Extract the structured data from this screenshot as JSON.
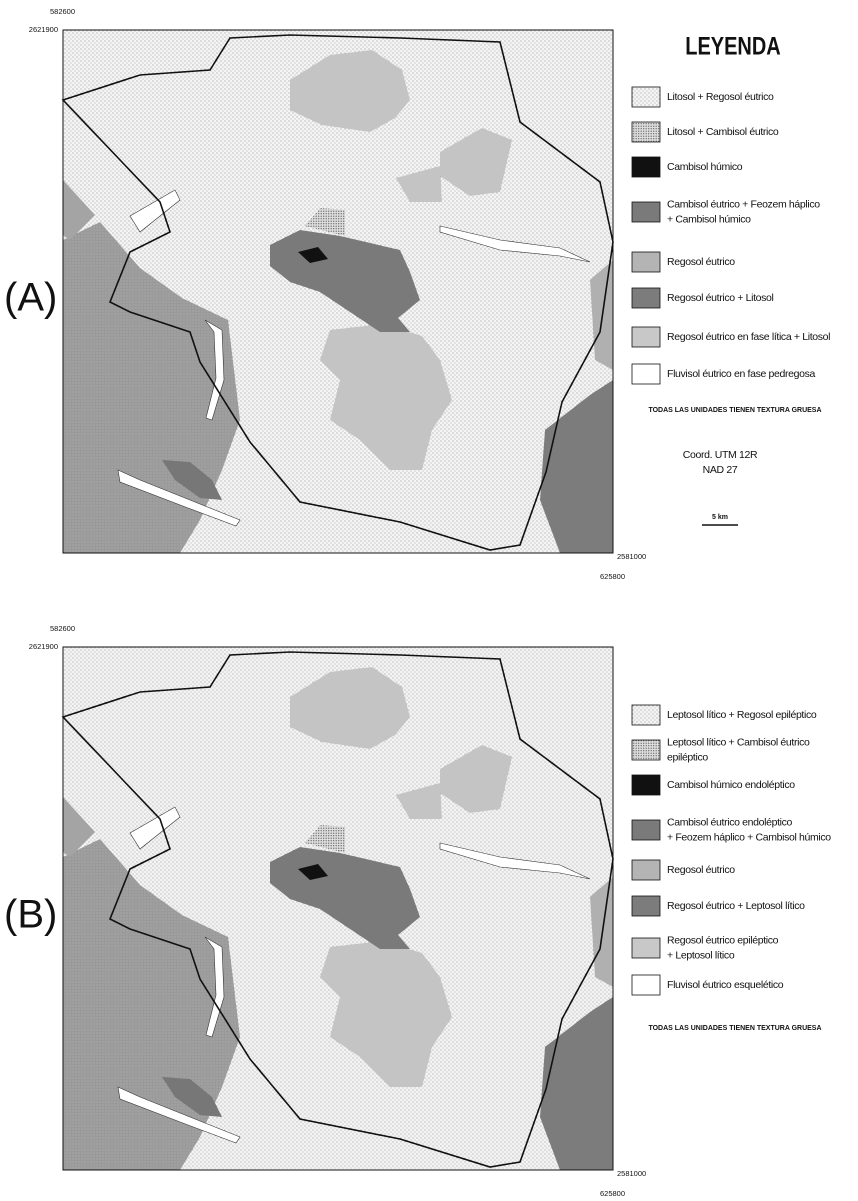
{
  "panel_a": {
    "label": "(A)",
    "coords": {
      "top_x": "582600",
      "top_y": "2621900",
      "bottom_y": "2581000",
      "bottom_x": "625800"
    },
    "legend": {
      "title": "LEYENDA",
      "items": [
        [
          "Litosol + Regosol éutrico"
        ],
        [
          "Litosol + Cambisol éutrico"
        ],
        [
          "Cambisol húmico"
        ],
        [
          "Cambisol éutrico + Feozem háplico",
          "+ Cambisol húmico"
        ],
        [
          "Regosol éutrico"
        ],
        [
          "Regosol éutrico + Litosol"
        ],
        [
          "Regosol éutrico en fase lítica + Litosol"
        ],
        [
          "Fluvisol éutrico en fase pedregosa"
        ]
      ],
      "note": "TODAS LAS UNIDADES TIENEN TEXTURA GRUESA"
    },
    "projection": [
      "Coord. UTM 12R",
      "NAD 27"
    ],
    "scale": "5 km"
  },
  "panel_b": {
    "label": "(B)",
    "coords": {
      "top_x": "582600",
      "top_y": "2621900",
      "bottom_y": "2581000",
      "bottom_x": "625800"
    },
    "legend": {
      "items": [
        [
          "Leptosol lítico + Regosol epiléptico"
        ],
        [
          "Leptosol lítico + Cambisol éutrico",
          "epiléptico"
        ],
        [
          "Cambisol húmico endoléptico"
        ],
        [
          "Cambisol éutrico endoléptico",
          "+ Feozem háplico + Cambisol húmico"
        ],
        [
          "Regosol éutrico"
        ],
        [
          "Regosol éutrico + Leptosol lítico"
        ],
        [
          "Regosol éutrico epiléptico",
          "+ Leptosol lítico"
        ],
        [
          "Fluvisol éutrico esquelético"
        ]
      ],
      "note": "TODAS LAS UNIDADES TIENEN TEXTURA GRUESA"
    }
  }
}
